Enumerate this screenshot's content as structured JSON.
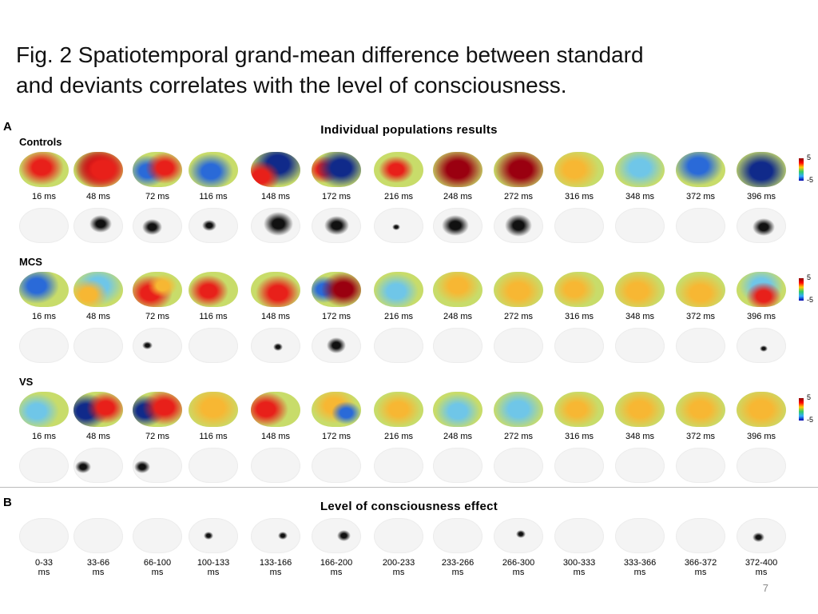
{
  "slide": {
    "title_line1": "Fig. 2 Spatiotemporal grand-mean difference between standard",
    "title_line2": "and deviants correlates with the level of consciousness.",
    "page_number": "7"
  },
  "panel_a": {
    "letter": "A",
    "heading": "Individual populations results",
    "colorbar_max": "5",
    "colorbar_min": "-5",
    "groups": [
      {
        "name": "Controls"
      },
      {
        "name": "MCS"
      },
      {
        "name": "VS"
      }
    ],
    "times": [
      "16 ms",
      "48 ms",
      "72 ms",
      "116 ms",
      "148 ms",
      "172 ms",
      "216 ms",
      "248 ms",
      "272 ms",
      "316 ms",
      "348 ms",
      "372 ms",
      "396 ms"
    ]
  },
  "panel_b": {
    "letter": "B",
    "heading": "Level of consciousness effect",
    "ranges": [
      {
        "top": "0-33",
        "bottom": "ms"
      },
      {
        "top": "33-66",
        "bottom": "ms"
      },
      {
        "top": "66-100",
        "bottom": "ms"
      },
      {
        "top": "100-133",
        "bottom": "ms"
      },
      {
        "top": "133-166",
        "bottom": "ms"
      },
      {
        "top": "166-200",
        "bottom": "ms"
      },
      {
        "top": "200-233",
        "bottom": "ms"
      },
      {
        "top": "233-266",
        "bottom": "ms"
      },
      {
        "top": "266-300",
        "bottom": "ms"
      },
      {
        "top": "300-333",
        "bottom": "ms"
      },
      {
        "top": "333-366",
        "bottom": "ms"
      },
      {
        "top": "366-372",
        "bottom": "ms"
      },
      {
        "top": "372-400",
        "bottom": "ms"
      }
    ]
  },
  "colors": {
    "topo_base": "#c8dc6a",
    "positive": "#e8201a",
    "strong_positive": "#9a0010",
    "negative": "#2a6ad8",
    "strong_negative": "#102a8a",
    "warm": "#f7b733",
    "cool": "#6fc6e8",
    "significance": "#111111"
  }
}
